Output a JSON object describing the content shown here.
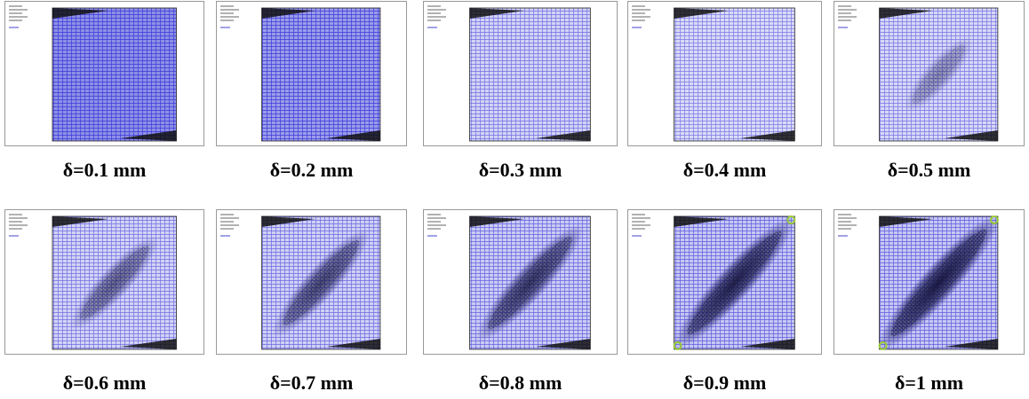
{
  "panels": [
    {
      "label": "δ=0.1 mm"
    },
    {
      "label": "δ=0.2 mm"
    },
    {
      "label": "δ=0.3 mm"
    },
    {
      "label": "δ=0.4 mm"
    },
    {
      "label": "δ=0.5 mm"
    },
    {
      "label": "δ=0.6 mm"
    },
    {
      "label": "δ=0.7 mm"
    },
    {
      "label": "δ=0.8 mm"
    },
    {
      "label": "δ=0.9 mm"
    },
    {
      "label": "δ=1 mm"
    }
  ]
}
